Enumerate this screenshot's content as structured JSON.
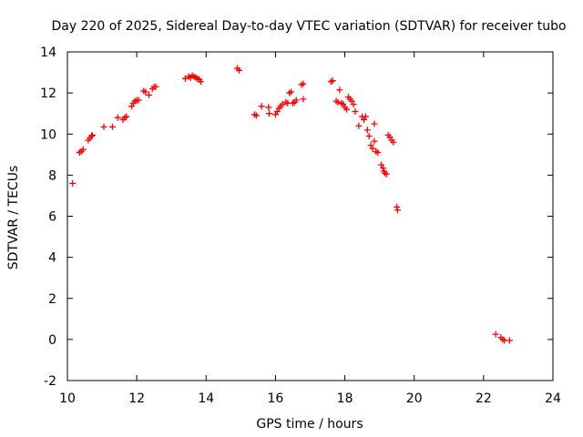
{
  "chart_data": {
    "type": "scatter",
    "title": "Day 220 of 2025, Sidereal Day-to-day VTEC variation (SDTVAR) for receiver tubo",
    "xlabel": "GPS time / hours",
    "ylabel": "SDTVAR / TECUs",
    "xlim": [
      10,
      24
    ],
    "ylim": [
      -2,
      14
    ],
    "xticks": [
      10,
      12,
      14,
      16,
      18,
      20,
      22,
      24
    ],
    "yticks": [
      -2,
      0,
      2,
      4,
      6,
      8,
      10,
      12,
      14
    ],
    "x_tick_labels": [
      "10",
      "12",
      "14",
      "16",
      "18",
      "20",
      "22",
      "24"
    ],
    "y_tick_labels": [
      "-2",
      "0",
      "2",
      "4",
      "6",
      "8",
      "10",
      "12",
      "14"
    ],
    "grid": false,
    "marker": "+",
    "series": [
      {
        "name": "SDTVAR",
        "color": "#ff0000",
        "points": [
          [
            10.15,
            7.6
          ],
          [
            10.35,
            9.1
          ],
          [
            10.4,
            9.15
          ],
          [
            10.45,
            9.25
          ],
          [
            10.6,
            9.7
          ],
          [
            10.65,
            9.8
          ],
          [
            10.7,
            9.9
          ],
          [
            10.72,
            9.95
          ],
          [
            11.05,
            10.35
          ],
          [
            11.3,
            10.35
          ],
          [
            11.45,
            10.8
          ],
          [
            11.6,
            10.7
          ],
          [
            11.65,
            10.8
          ],
          [
            11.7,
            10.85
          ],
          [
            11.85,
            11.35
          ],
          [
            11.9,
            11.5
          ],
          [
            11.95,
            11.6
          ],
          [
            12.0,
            11.65
          ],
          [
            12.05,
            11.65
          ],
          [
            12.2,
            12.1
          ],
          [
            12.25,
            12.05
          ],
          [
            12.35,
            11.9
          ],
          [
            12.45,
            12.2
          ],
          [
            12.5,
            12.3
          ],
          [
            12.55,
            12.3
          ],
          [
            13.4,
            12.7
          ],
          [
            13.5,
            12.8
          ],
          [
            13.55,
            12.75
          ],
          [
            13.6,
            12.85
          ],
          [
            13.65,
            12.8
          ],
          [
            13.7,
            12.75
          ],
          [
            13.75,
            12.7
          ],
          [
            13.8,
            12.65
          ],
          [
            13.85,
            12.55
          ],
          [
            14.9,
            13.2
          ],
          [
            14.95,
            13.1
          ],
          [
            15.4,
            10.95
          ],
          [
            15.45,
            10.9
          ],
          [
            15.6,
            11.35
          ],
          [
            15.8,
            11.3
          ],
          [
            15.82,
            11.0
          ],
          [
            16.0,
            10.95
          ],
          [
            16.05,
            11.1
          ],
          [
            16.1,
            11.25
          ],
          [
            16.15,
            11.35
          ],
          [
            16.2,
            11.45
          ],
          [
            16.3,
            11.55
          ],
          [
            16.35,
            11.5
          ],
          [
            16.4,
            12.0
          ],
          [
            16.45,
            12.05
          ],
          [
            16.5,
            11.5
          ],
          [
            16.55,
            11.55
          ],
          [
            16.6,
            11.65
          ],
          [
            16.75,
            12.4
          ],
          [
            16.8,
            12.45
          ],
          [
            16.8,
            11.7
          ],
          [
            17.6,
            12.55
          ],
          [
            17.65,
            12.6
          ],
          [
            17.75,
            11.6
          ],
          [
            17.8,
            11.55
          ],
          [
            17.85,
            12.15
          ],
          [
            17.9,
            11.5
          ],
          [
            17.95,
            11.45
          ],
          [
            18.0,
            11.3
          ],
          [
            18.05,
            11.2
          ],
          [
            18.1,
            11.8
          ],
          [
            18.15,
            11.7
          ],
          [
            18.2,
            11.6
          ],
          [
            18.25,
            11.45
          ],
          [
            18.3,
            11.1
          ],
          [
            18.4,
            10.4
          ],
          [
            18.5,
            10.85
          ],
          [
            18.55,
            10.7
          ],
          [
            18.6,
            10.85
          ],
          [
            18.65,
            10.2
          ],
          [
            18.7,
            9.9
          ],
          [
            18.75,
            9.45
          ],
          [
            18.8,
            9.3
          ],
          [
            18.85,
            10.5
          ],
          [
            18.85,
            9.65
          ],
          [
            18.9,
            9.15
          ],
          [
            18.95,
            9.1
          ],
          [
            19.05,
            8.5
          ],
          [
            19.1,
            8.35
          ],
          [
            19.12,
            8.2
          ],
          [
            19.15,
            8.1
          ],
          [
            19.2,
            8.05
          ],
          [
            19.25,
            9.95
          ],
          [
            19.3,
            9.85
          ],
          [
            19.35,
            9.7
          ],
          [
            19.4,
            9.6
          ],
          [
            19.5,
            6.45
          ],
          [
            19.52,
            6.3
          ],
          [
            22.35,
            0.25
          ],
          [
            22.5,
            0.1
          ],
          [
            22.55,
            0.0
          ],
          [
            22.6,
            -0.05
          ],
          [
            22.75,
            -0.05
          ]
        ]
      }
    ]
  }
}
